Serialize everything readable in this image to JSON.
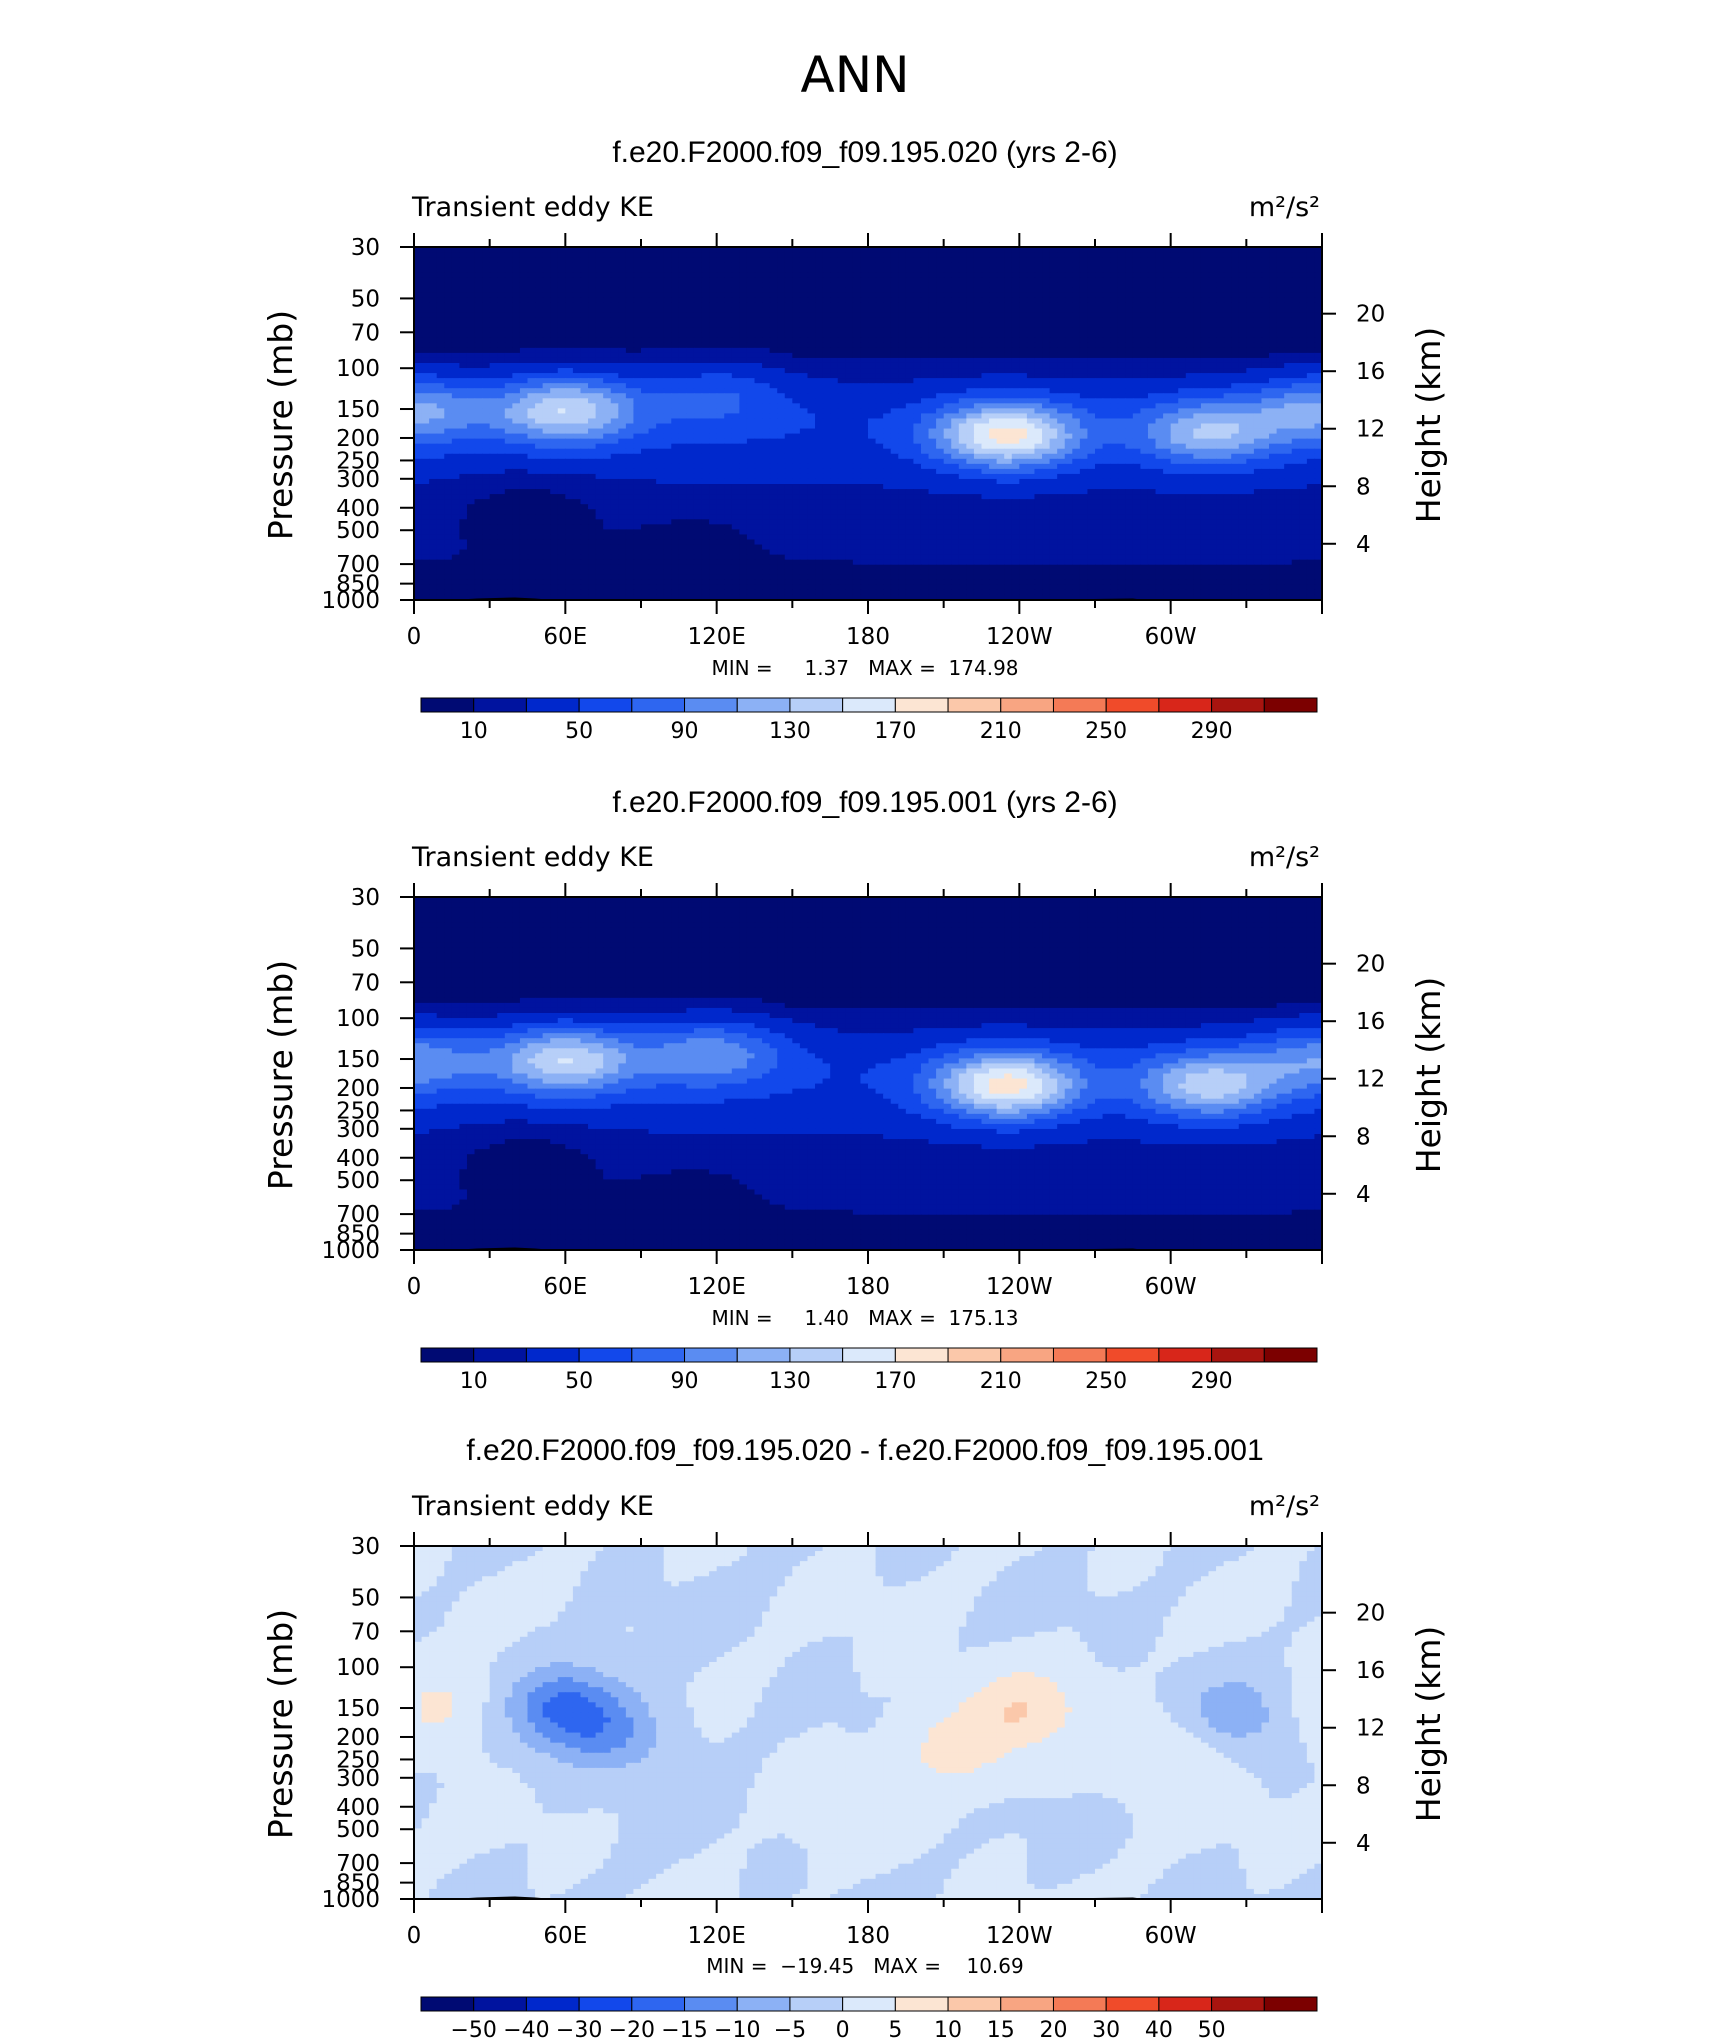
{
  "figure": {
    "title": "ANN"
  },
  "colors": {
    "abs_scale": [
      "#000a73",
      "#00139f",
      "#0028cc",
      "#1248eb",
      "#2e66f0",
      "#5a8cf2",
      "#8cb1f5",
      "#b7cff8",
      "#dbe9fb",
      "#fce5d3",
      "#fbc8aa",
      "#f8a582",
      "#f47a56",
      "#f04b2a",
      "#d8261a",
      "#a8140f",
      "#7c0000"
    ],
    "diff_scale": [
      "#000a73",
      "#00139f",
      "#0028cc",
      "#1248eb",
      "#2e66f0",
      "#5a8cf2",
      "#8cb1f5",
      "#b7cff8",
      "#dbe9fb",
      "#fce5d3",
      "#fbc8aa",
      "#f8a582",
      "#f47a56",
      "#f04b2a",
      "#d8261a",
      "#a8140f",
      "#7c0000"
    ],
    "topo_fill": "#000000"
  },
  "chart_data": [
    {
      "type": "heatmap",
      "title": "f.e20.F2000.f09_f09.195.020 (yrs 2-6)",
      "left_label": "Transient eddy KE",
      "units": "m²/s²",
      "ylabel": "Pressure  (mb)",
      "ylabel_right": "Height  (km)",
      "x_ticks": [
        "0",
        "60E",
        "120E",
        "180",
        "120W",
        "60W"
      ],
      "y_ticks": [
        "30",
        "50",
        "70",
        "100",
        "150",
        "200",
        "250",
        "300",
        "400",
        "500",
        "700",
        "850",
        "1000"
      ],
      "y_ticks_right": [
        "20",
        "16",
        "12",
        "8",
        "4"
      ],
      "stats_text": "MIN =     1.37   MAX =  174.98",
      "min": 1.37,
      "max": 174.98,
      "colorbar_labels": [
        "10",
        "50",
        "90",
        "130",
        "170",
        "210",
        "250",
        "290"
      ],
      "levels": [
        0,
        10,
        30,
        50,
        70,
        90,
        110,
        130,
        150,
        170,
        190,
        210,
        230,
        250,
        270,
        290,
        310
      ],
      "features": [
        {
          "lon": 0,
          "p": 150,
          "value": 110
        },
        {
          "lon": 60,
          "p": 150,
          "value": 145
        },
        {
          "lon": 120,
          "p": 130,
          "value": 75
        },
        {
          "lon": 235,
          "p": 195,
          "value": 172
        },
        {
          "lon": 315,
          "p": 190,
          "value": 125
        },
        {
          "lon": 45,
          "p": 400,
          "value": 15
        },
        {
          "lon": 110,
          "p": 500,
          "value": 30
        }
      ]
    },
    {
      "type": "heatmap",
      "title": "f.e20.F2000.f09_f09.195.001 (yrs 2-6)",
      "left_label": "Transient eddy KE",
      "units": "m²/s²",
      "ylabel": "Pressure  (mb)",
      "ylabel_right": "Height  (km)",
      "x_ticks": [
        "0",
        "60E",
        "120E",
        "180",
        "120W",
        "60W"
      ],
      "y_ticks": [
        "30",
        "50",
        "70",
        "100",
        "150",
        "200",
        "250",
        "300",
        "400",
        "500",
        "700",
        "850",
        "1000"
      ],
      "y_ticks_right": [
        "20",
        "16",
        "12",
        "8",
        "4"
      ],
      "stats_text": "MIN =     1.40   MAX =  175.13",
      "min": 1.4,
      "max": 175.13,
      "colorbar_labels": [
        "10",
        "50",
        "90",
        "130",
        "170",
        "210",
        "250",
        "290"
      ],
      "levels": [
        0,
        10,
        30,
        50,
        70,
        90,
        110,
        130,
        150,
        170,
        190,
        210,
        230,
        250,
        270,
        290,
        310
      ],
      "features": [
        {
          "lon": 0,
          "p": 150,
          "value": 100
        },
        {
          "lon": 60,
          "p": 150,
          "value": 145
        },
        {
          "lon": 118,
          "p": 140,
          "value": 105
        },
        {
          "lon": 235,
          "p": 195,
          "value": 173
        },
        {
          "lon": 315,
          "p": 195,
          "value": 135
        },
        {
          "lon": 45,
          "p": 400,
          "value": 15
        },
        {
          "lon": 110,
          "p": 500,
          "value": 30
        }
      ]
    },
    {
      "type": "heatmap",
      "title": "f.e20.F2000.f09_f09.195.020 - f.e20.F2000.f09_f09.195.001",
      "left_label": "Transient eddy KE",
      "units": "m²/s²",
      "ylabel": "Pressure  (mb)",
      "ylabel_right": "Height  (km)",
      "x_ticks": [
        "0",
        "60E",
        "120E",
        "180",
        "120W",
        "60W"
      ],
      "y_ticks": [
        "30",
        "50",
        "70",
        "100",
        "150",
        "200",
        "250",
        "300",
        "400",
        "500",
        "700",
        "850",
        "1000"
      ],
      "y_ticks_right": [
        "20",
        "16",
        "12",
        "8",
        "4"
      ],
      "stats_text": "MIN =  −19.45   MAX =    10.69",
      "min": -19.45,
      "max": 10.69,
      "colorbar_labels": [
        "−50",
        "−40",
        "−30",
        "−20",
        "−15",
        "−10",
        "−5",
        "0",
        "5",
        "10",
        "15",
        "20",
        "30",
        "40",
        "50"
      ],
      "levels": [
        -60,
        -50,
        -40,
        -30,
        -20,
        -15,
        -10,
        -5,
        0,
        5,
        10,
        15,
        20,
        30,
        40,
        50,
        60
      ],
      "features": [
        {
          "lon": 10,
          "p": 150,
          "value": 6
        },
        {
          "lon": 60,
          "p": 150,
          "value": -16
        },
        {
          "lon": 80,
          "p": 200,
          "value": -8
        },
        {
          "lon": 215,
          "p": 220,
          "value": 7
        },
        {
          "lon": 242,
          "p": 150,
          "value": 9
        },
        {
          "lon": 300,
          "p": 240,
          "value": 6
        },
        {
          "lon": 325,
          "p": 160,
          "value": -8
        },
        {
          "lon": 180,
          "p": 400,
          "value": 3
        }
      ]
    }
  ]
}
